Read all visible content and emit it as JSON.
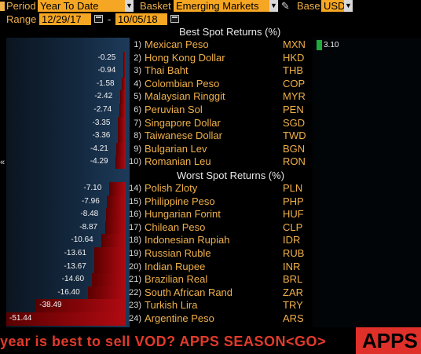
{
  "header": {
    "period_label": "Period",
    "period_value": "Year To Date",
    "basket_label": "Basket",
    "basket_value": "Emerging Markets",
    "base_label": "Base",
    "base_value": "USD",
    "range_label": "Range",
    "range_start": "12/29/17",
    "range_sep": "-",
    "range_end": "10/05/18"
  },
  "best": {
    "title": "Best Spot Returns (%)",
    "rows": [
      {
        "num": "1)",
        "name": "Mexican Peso",
        "code": "MXN",
        "value": "3.10"
      },
      {
        "num": "2)",
        "name": "Hong Kong Dollar",
        "code": "HKD",
        "value": "-0.25"
      },
      {
        "num": "3)",
        "name": "Thai Baht",
        "code": "THB",
        "value": "-0.94"
      },
      {
        "num": "4)",
        "name": "Colombian Peso",
        "code": "COP",
        "value": "-1.58"
      },
      {
        "num": "5)",
        "name": "Malaysian Ringgit",
        "code": "MYR",
        "value": "-2.42"
      },
      {
        "num": "6)",
        "name": "Peruvian Sol",
        "code": "PEN",
        "value": "-2.74"
      },
      {
        "num": "7)",
        "name": "Singapore Dollar",
        "code": "SGD",
        "value": "-3.35"
      },
      {
        "num": "8)",
        "name": "Taiwanese Dollar",
        "code": "TWD",
        "value": "-3.36"
      },
      {
        "num": "9)",
        "name": "Bulgarian Lev",
        "code": "BGN",
        "value": "-4.21"
      },
      {
        "num": "10)",
        "name": "Romanian Leu",
        "code": "RON",
        "value": "-4.29"
      }
    ]
  },
  "worst": {
    "title": "Worst Spot Returns (%)",
    "rows": [
      {
        "num": "14)",
        "name": "Polish Zloty",
        "code": "PLN",
        "value": "-7.10"
      },
      {
        "num": "15)",
        "name": "Philippine Peso",
        "code": "PHP",
        "value": "-7.96"
      },
      {
        "num": "16)",
        "name": "Hungarian Forint",
        "code": "HUF",
        "value": "-8.48"
      },
      {
        "num": "17)",
        "name": "Chilean Peso",
        "code": "CLP",
        "value": "-8.87"
      },
      {
        "num": "18)",
        "name": "Indonesian Rupiah",
        "code": "IDR",
        "value": "-10.64"
      },
      {
        "num": "19)",
        "name": "Russian Ruble",
        "code": "RUB",
        "value": "-13.61"
      },
      {
        "num": "20)",
        "name": "Indian Rupee",
        "code": "INR",
        "value": "-13.67"
      },
      {
        "num": "21)",
        "name": "Brazilian Real",
        "code": "BRL",
        "value": "-14.60"
      },
      {
        "num": "22)",
        "name": "South African Rand",
        "code": "ZAR",
        "value": "-16.40"
      },
      {
        "num": "23)",
        "name": "Turkish Lira",
        "code": "TRY",
        "value": "-38.49"
      },
      {
        "num": "24)",
        "name": "Argentine Peso",
        "code": "ARS",
        "value": "-51.44"
      }
    ]
  },
  "ticker": {
    "text": "year is best to sell VOD?  APPS SEASON<GO>",
    "badge": "APPS"
  },
  "colors": {
    "accent_orange": "#f5a623",
    "label_amber": "#f0b04a",
    "bar_red": "#b10a12",
    "bar_green": "#1faa3a",
    "ticker_red": "#e33a2b"
  }
}
